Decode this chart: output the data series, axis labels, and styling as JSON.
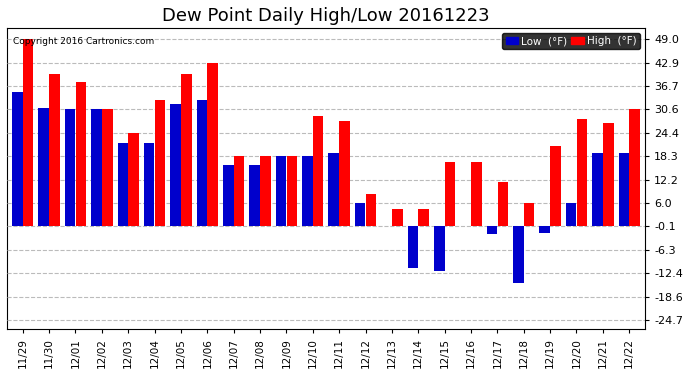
{
  "title": "Dew Point Daily High/Low 20161223",
  "copyright": "Copyright 2016 Cartronics.com",
  "dates": [
    "11/29",
    "11/30",
    "12/01",
    "12/02",
    "12/03",
    "12/04",
    "12/05",
    "12/06",
    "12/07",
    "12/08",
    "12/09",
    "12/10",
    "12/11",
    "12/12",
    "12/13",
    "12/14",
    "12/15",
    "12/16",
    "12/17",
    "12/18",
    "12/19",
    "12/20",
    "12/21",
    "12/22"
  ],
  "high_values": [
    49.0,
    39.9,
    37.9,
    30.6,
    24.4,
    33.1,
    39.9,
    42.9,
    18.3,
    18.3,
    18.3,
    28.9,
    27.5,
    8.5,
    4.5,
    4.5,
    16.8,
    16.8,
    11.5,
    6.1,
    21.0,
    28.0,
    27.0,
    30.6
  ],
  "low_values": [
    35.1,
    31.0,
    30.6,
    30.6,
    21.9,
    21.9,
    32.0,
    33.1,
    16.0,
    16.0,
    18.3,
    18.3,
    19.1,
    6.1,
    -0.1,
    -11.0,
    -11.9,
    -0.1,
    -2.0,
    -14.9,
    -1.9,
    6.1,
    19.1,
    19.1
  ],
  "high_color": "#ff0000",
  "low_color": "#0000cc",
  "background_color": "#ffffff",
  "grid_color": "#bbbbbb",
  "yticks": [
    49.0,
    42.9,
    36.7,
    30.6,
    24.4,
    18.3,
    12.2,
    6.0,
    -0.1,
    -6.3,
    -12.4,
    -18.6,
    -24.7
  ],
  "ylim": [
    -27,
    52
  ],
  "title_fontsize": 13,
  "legend_label_low": "Low  (°F)",
  "legend_label_high": "High  (°F)"
}
